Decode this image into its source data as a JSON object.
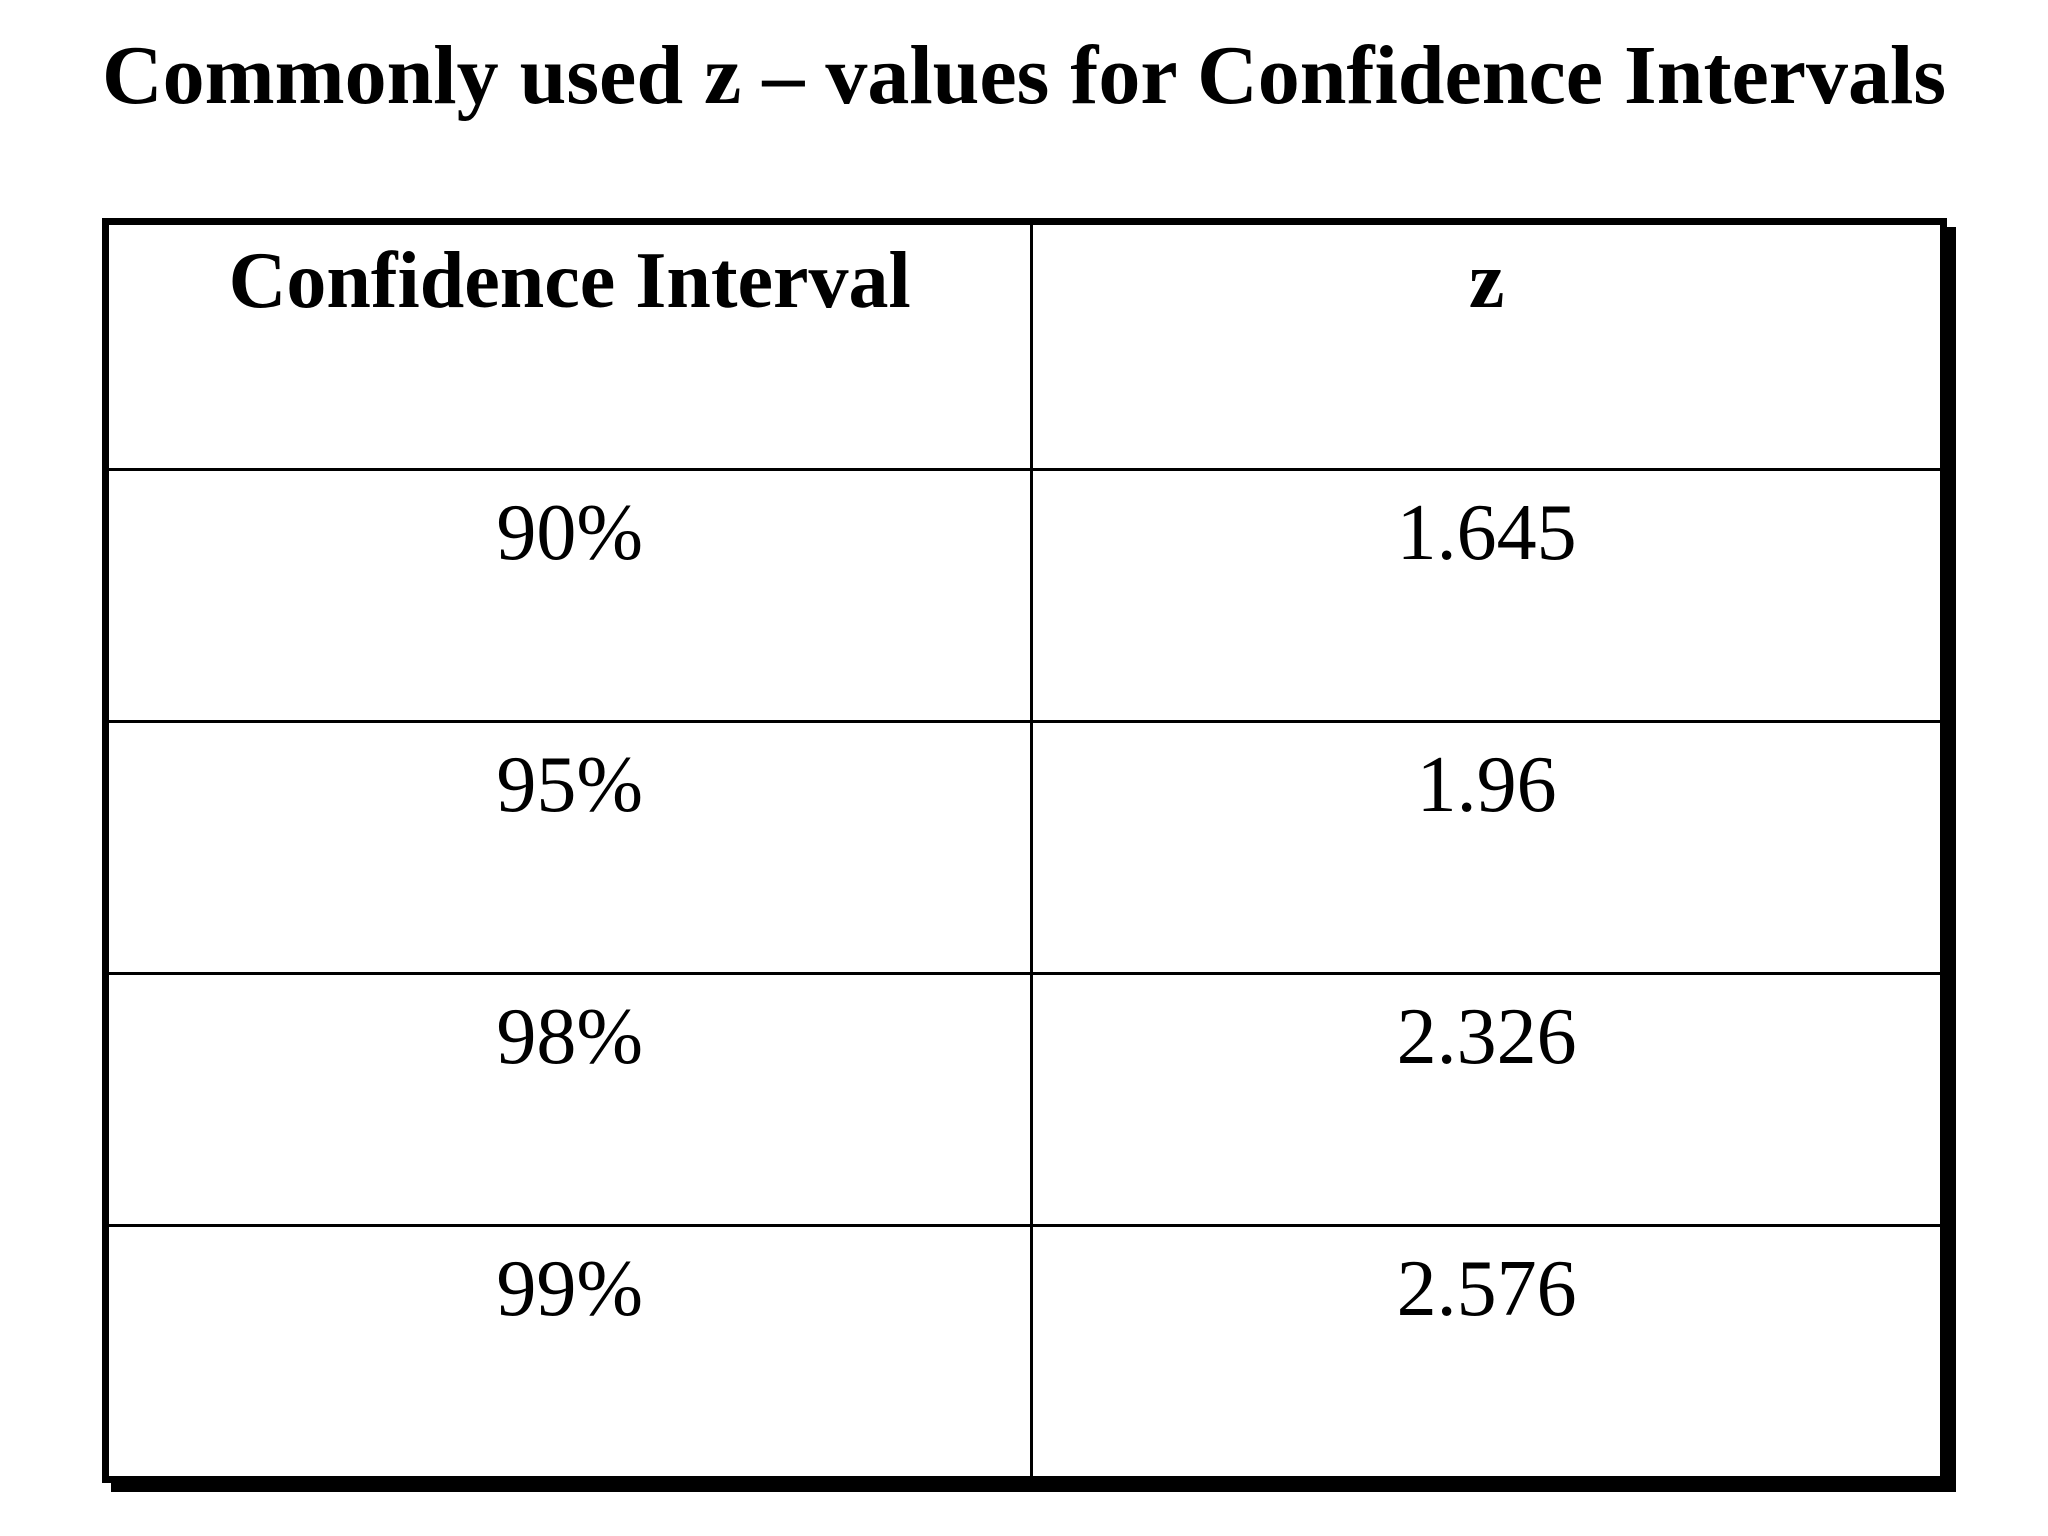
{
  "title": "Commonly used z – values for Confidence Intervals",
  "table": {
    "headers": [
      "Confidence Interval",
      "z"
    ],
    "rows": [
      [
        "90%",
        "1.645"
      ],
      [
        "95%",
        "1.96"
      ],
      [
        "98%",
        "2.326"
      ],
      [
        "99%",
        "2.576"
      ]
    ]
  },
  "colors": {
    "background": "#ffffff",
    "text": "#000000",
    "border": "#000000"
  },
  "chart_data": {
    "type": "table",
    "title": "Commonly used z – values for Confidence Intervals",
    "columns": [
      "Confidence Interval",
      "z"
    ],
    "rows": [
      [
        "90%",
        "1.645"
      ],
      [
        "95%",
        "1.96"
      ],
      [
        "98%",
        "2.326"
      ],
      [
        "99%",
        "2.576"
      ]
    ]
  }
}
